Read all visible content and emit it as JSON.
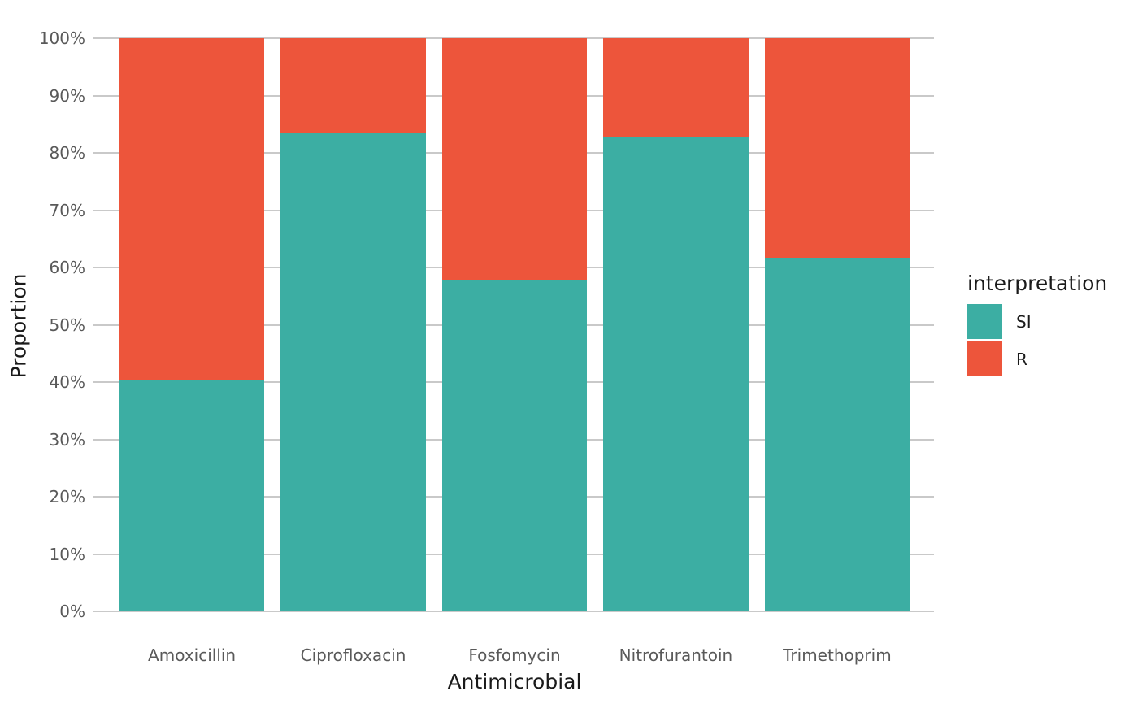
{
  "chart_data": {
    "type": "bar",
    "variant": "stacked-percent",
    "orientation": "vertical",
    "title": "",
    "xlabel": "Antimicrobial",
    "ylabel": "Proportion",
    "legend_title": "interpretation",
    "legend_position": "right",
    "grid": true,
    "categories": [
      "Amoxicillin",
      "Ciprofloxacin",
      "Fosfomycin",
      "Nitrofurantoin",
      "Trimethoprim"
    ],
    "series": [
      {
        "name": "SI",
        "color": "#3CAEA3",
        "values": [
          40.4,
          83.6,
          57.7,
          82.7,
          61.7
        ]
      },
      {
        "name": "R",
        "color": "#ED553B",
        "values": [
          59.6,
          16.4,
          42.3,
          17.3,
          38.3
        ]
      }
    ],
    "ylim": [
      0,
      100
    ],
    "y_tick_values": [
      0,
      10,
      20,
      30,
      40,
      50,
      60,
      70,
      80,
      90,
      100
    ],
    "y_tick_labels": [
      "0%",
      "10%",
      "20%",
      "30%",
      "40%",
      "50%",
      "60%",
      "70%",
      "80%",
      "90%",
      "100%"
    ],
    "colors": {
      "background": "#FFFFFF",
      "gridline": "#C9C9C9",
      "tick_label": "#595959",
      "axis_title": "#1A1A1A",
      "legend_text": "#1A1A1A"
    }
  }
}
